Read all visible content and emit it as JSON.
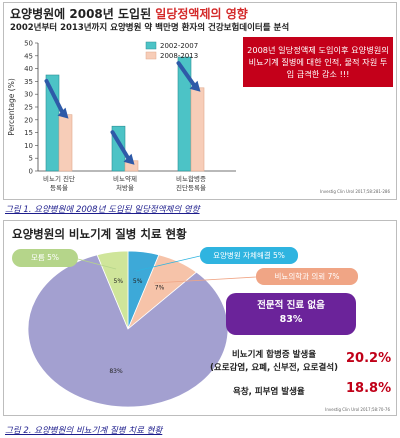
{
  "figure1": {
    "title_prefix": "요양병원에 2008년 도입된 ",
    "title_highlight": "일당정액제의 영향",
    "subtitle": "2002년부터 2013년까지 요양병원 약 백만명 환자의 건강보험데이터를 분석",
    "note": "2008년 일당정액제 도입이후 요양병원의 비뇨기계 질병에 대한 인적, 물적 자원 투입 급격한 감소 !!!",
    "citation": "Investig Clin Urol 2017;58:281-286",
    "caption": "그림 1. 요양병원에 2008년 도입된 일당정액제의 영향"
  },
  "figure2": {
    "title": "요양병원의 비뇨기계 질병 치료 현황",
    "callouts": {
      "other": "모름 5%",
      "self": "요양병원 자체해결 5%",
      "urology": "비뇨의학과 의뢰 7%",
      "specialist_line1": "전문적 진료 없음",
      "specialist_line2": "83%"
    },
    "complications_label_line1": "비뇨기계 합병증 발생율",
    "complications_label_line2": "(요로감염, 요폐, 신부전, 요로결석)",
    "complications_value": "20.2%",
    "skin_label": "욕창, 피부염 발생율",
    "skin_value": "18.8%",
    "citation": "Investig Clin Urol 2017;58:70-76",
    "caption": "그림 2. 요양병원의 비뇨기계 질병 치료 현황"
  },
  "chart_data": [
    {
      "type": "bar",
      "title": "요양병원에 2008년 도입된 일당정액제의 영향",
      "ylabel": "Percentage (%)",
      "ylim": [
        0,
        50
      ],
      "yticks": [
        0,
        5,
        10,
        15,
        20,
        25,
        30,
        35,
        40,
        45,
        50
      ],
      "grid": false,
      "legend": "top",
      "categories": [
        "비뇨기 진단\n등록율",
        "비뇨약제\n처방율",
        "비뇨합병증\n진단등록율"
      ],
      "series": [
        {
          "name": "2002-2007",
          "color": "#4cc3c6",
          "values": [
            37.5,
            17.5,
            44.5
          ]
        },
        {
          "name": "2008-2013",
          "color": "#f7cdb8",
          "values": [
            22.0,
            4.0,
            32.5
          ]
        }
      ]
    },
    {
      "type": "pie",
      "title": "요양병원의 비뇨기계 질병 치료 현황",
      "slices": [
        {
          "label": "요양병원 자체해결",
          "value": 5,
          "color": "#3da9d8"
        },
        {
          "label": "비뇨의학과 의뢰",
          "value": 7,
          "color": "#f6c3a9"
        },
        {
          "label": "전문적 진료 없음",
          "value": 83,
          "color": "#a3a0d0"
        },
        {
          "label": "모름",
          "value": 5,
          "color": "#cfe59a"
        }
      ],
      "slice_labels": [
        "5%",
        "7%",
        "83%",
        "5%"
      ]
    }
  ]
}
